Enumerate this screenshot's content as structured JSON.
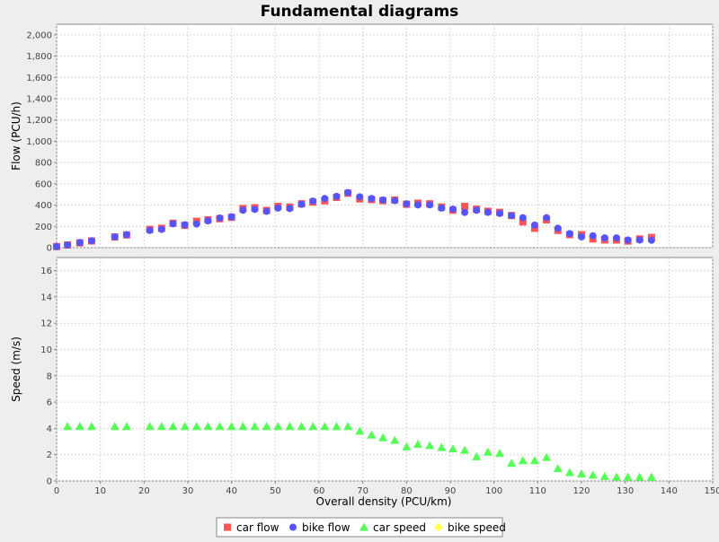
{
  "chart_data": {
    "type": "scatter",
    "title": "Fundamental diagrams",
    "xlabel": "Overall density (PCU/km)",
    "xlim": [
      0,
      150
    ],
    "x_ticks": [
      0,
      10,
      20,
      30,
      40,
      50,
      60,
      70,
      80,
      90,
      100,
      110,
      120,
      130,
      140,
      150
    ],
    "grid": true,
    "legend_position": "bottom",
    "colors": {
      "car_flow": "#ff5555",
      "bike_flow": "#5555ff",
      "car_speed": "#55ff55",
      "bike_speed": "#ffff55"
    },
    "legend": [
      "car flow",
      "bike flow",
      "car speed",
      "bike speed"
    ],
    "subplots": [
      {
        "ylabel": "Flow (PCU/h)",
        "ylim": [
          0,
          2100
        ],
        "y_ticks": [
          0,
          200,
          400,
          600,
          800,
          1000,
          1200,
          1400,
          1600,
          1800,
          2000
        ],
        "y_tick_labels": [
          "0",
          "200",
          "400",
          "600",
          "800",
          "1,000",
          "1,200",
          "1,400",
          "1,600",
          "1,800",
          "2,000"
        ],
        "series": [
          {
            "name": "car flow",
            "marker": "square",
            "points": [
              [
                0,
                10
              ],
              [
                2.5,
                25
              ],
              [
                5.3,
                45
              ],
              [
                8,
                63
              ],
              [
                13.3,
                100
              ],
              [
                16,
                120
              ],
              [
                21.3,
                172
              ],
              [
                24,
                182
              ],
              [
                26.6,
                230
              ],
              [
                29.3,
                210
              ],
              [
                32,
                248
              ],
              [
                34.6,
                262
              ],
              [
                37.3,
                272
              ],
              [
                40,
                285
              ],
              [
                42.6,
                368
              ],
              [
                45.3,
                375
              ],
              [
                48,
                350
              ],
              [
                50.6,
                388
              ],
              [
                53.3,
                382
              ],
              [
                56,
                412
              ],
              [
                58.6,
                428
              ],
              [
                61.3,
                440
              ],
              [
                64,
                472
              ],
              [
                66.6,
                512
              ],
              [
                69.3,
                458
              ],
              [
                72,
                452
              ],
              [
                74.6,
                442
              ],
              [
                77.3,
                448
              ],
              [
                80,
                408
              ],
              [
                82.6,
                418
              ],
              [
                85.3,
                412
              ],
              [
                88,
                382
              ],
              [
                90.6,
                352
              ],
              [
                93.3,
                388
              ],
              [
                96,
                362
              ],
              [
                98.6,
                342
              ],
              [
                101.3,
                332
              ],
              [
                104,
                302
              ],
              [
                106.6,
                242
              ],
              [
                109.3,
                182
              ],
              [
                112,
                262
              ],
              [
                114.6,
                162
              ],
              [
                117.3,
                122
              ],
              [
                120,
                122
              ],
              [
                122.6,
                82
              ],
              [
                125.3,
                72
              ],
              [
                128,
                72
              ],
              [
                130.6,
                62
              ],
              [
                133.3,
                82
              ],
              [
                136,
                96
              ]
            ]
          },
          {
            "name": "bike flow",
            "marker": "circle",
            "points": [
              [
                0,
                10
              ],
              [
                2.5,
                25
              ],
              [
                5.3,
                48
              ],
              [
                8,
                65
              ],
              [
                13.3,
                102
              ],
              [
                16,
                122
              ],
              [
                21.3,
                162
              ],
              [
                24,
                172
              ],
              [
                26.6,
                225
              ],
              [
                29.3,
                215
              ],
              [
                32,
                222
              ],
              [
                34.6,
                252
              ],
              [
                37.3,
                278
              ],
              [
                40,
                290
              ],
              [
                42.6,
                352
              ],
              [
                45.3,
                360
              ],
              [
                48,
                342
              ],
              [
                50.6,
                372
              ],
              [
                53.3,
                368
              ],
              [
                56,
                408
              ],
              [
                58.6,
                438
              ],
              [
                61.3,
                462
              ],
              [
                64,
                482
              ],
              [
                66.6,
                518
              ],
              [
                69.3,
                478
              ],
              [
                72,
                462
              ],
              [
                74.6,
                448
              ],
              [
                77.3,
                442
              ],
              [
                80,
                412
              ],
              [
                82.6,
                402
              ],
              [
                85.3,
                402
              ],
              [
                88,
                372
              ],
              [
                90.6,
                362
              ],
              [
                93.3,
                332
              ],
              [
                96,
                352
              ],
              [
                98.6,
                332
              ],
              [
                101.3,
                322
              ],
              [
                104,
                302
              ],
              [
                106.6,
                282
              ],
              [
                109.3,
                212
              ],
              [
                112,
                282
              ],
              [
                114.6,
                182
              ],
              [
                117.3,
                132
              ],
              [
                120,
                102
              ],
              [
                122.6,
                112
              ],
              [
                125.3,
                92
              ],
              [
                128,
                92
              ],
              [
                130.6,
                72
              ],
              [
                133.3,
                72
              ],
              [
                136,
                70
              ]
            ]
          }
        ]
      },
      {
        "ylabel": "Speed (m/s)",
        "ylim": [
          0,
          17
        ],
        "y_ticks": [
          0,
          2,
          4,
          6,
          8,
          10,
          12,
          14,
          16
        ],
        "y_tick_labels": [
          "0",
          "2",
          "4",
          "6",
          "8",
          "10",
          "12",
          "14",
          "16"
        ],
        "series": [
          {
            "name": "car speed",
            "marker": "triangle",
            "points": [
              [
                2.5,
                4.15
              ],
              [
                5.3,
                4.15
              ],
              [
                8,
                4.15
              ],
              [
                13.3,
                4.15
              ],
              [
                16,
                4.15
              ],
              [
                21.3,
                4.15
              ],
              [
                24,
                4.15
              ],
              [
                26.6,
                4.15
              ],
              [
                29.3,
                4.15
              ],
              [
                32,
                4.15
              ],
              [
                34.6,
                4.15
              ],
              [
                37.3,
                4.15
              ],
              [
                40,
                4.15
              ],
              [
                42.6,
                4.15
              ],
              [
                45.3,
                4.15
              ],
              [
                48,
                4.15
              ],
              [
                50.6,
                4.15
              ],
              [
                53.3,
                4.15
              ],
              [
                56,
                4.15
              ],
              [
                58.6,
                4.15
              ],
              [
                61.3,
                4.15
              ],
              [
                64,
                4.15
              ],
              [
                66.6,
                4.15
              ],
              [
                69.3,
                3.8
              ],
              [
                72,
                3.5
              ],
              [
                74.6,
                3.3
              ],
              [
                77.3,
                3.1
              ],
              [
                80,
                2.6
              ],
              [
                82.6,
                2.8
              ],
              [
                85.3,
                2.7
              ],
              [
                88,
                2.55
              ],
              [
                90.6,
                2.45
              ],
              [
                93.3,
                2.35
              ],
              [
                96,
                1.85
              ],
              [
                98.6,
                2.2
              ],
              [
                101.3,
                2.1
              ],
              [
                104,
                1.35
              ],
              [
                106.6,
                1.55
              ],
              [
                109.3,
                1.55
              ],
              [
                112,
                1.8
              ],
              [
                114.6,
                0.95
              ],
              [
                117.3,
                0.65
              ],
              [
                120,
                0.55
              ],
              [
                122.6,
                0.45
              ],
              [
                125.3,
                0.35
              ],
              [
                128,
                0.3
              ],
              [
                130.6,
                0.3
              ],
              [
                133.3,
                0.3
              ],
              [
                136,
                0.3
              ]
            ]
          },
          {
            "name": "bike speed",
            "marker": "diamond",
            "points": []
          }
        ]
      }
    ]
  }
}
